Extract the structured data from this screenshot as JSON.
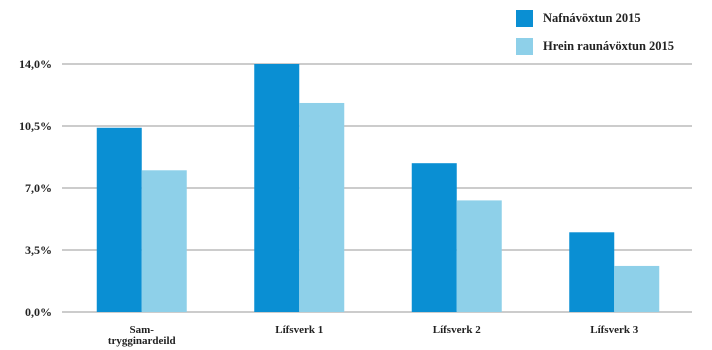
{
  "chart_data": {
    "type": "bar",
    "categories": [
      "Sam-\ntrygginardeild",
      "Lífsverk 1",
      "Lífsverk 2",
      "Lífsverk 3"
    ],
    "series": [
      {
        "name": "Nafnávöxtun 2015",
        "color": "#0a8fd3",
        "values": [
          10.4,
          14.0,
          8.4,
          4.5
        ]
      },
      {
        "name": "Hrein raunávöxtun 2015",
        "color": "#8ed0e9",
        "values": [
          8.0,
          11.8,
          6.3,
          2.6
        ]
      }
    ],
    "yticks": [
      "0,0%",
      "3,5%",
      "7,0%",
      "10,5%",
      "14,0%"
    ],
    "ylim": [
      0,
      14
    ],
    "grid": true,
    "legend_position": "top-right"
  }
}
